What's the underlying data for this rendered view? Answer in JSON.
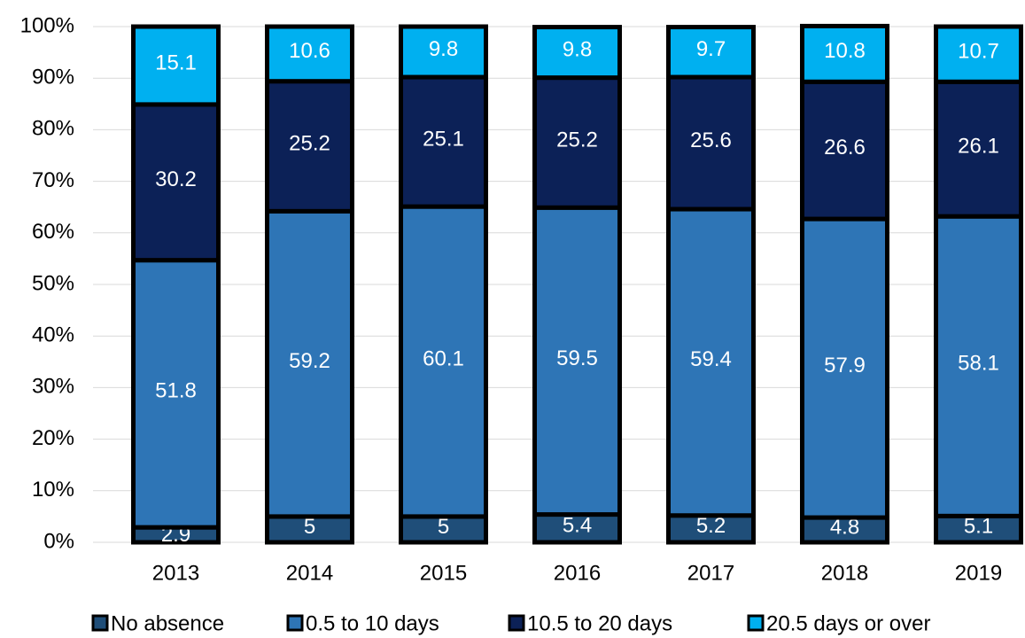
{
  "chart_data": {
    "type": "stacked-bar",
    "categories": [
      "2013",
      "2014",
      "2015",
      "2016",
      "2017",
      "2018",
      "2019"
    ],
    "series": [
      {
        "name": "No absence",
        "color": "#1f4e79",
        "values": [
          2.9,
          5,
          5,
          5.4,
          5.2,
          4.8,
          5.1
        ]
      },
      {
        "name": "0.5 to 10 days",
        "color": "#2e75b6",
        "values": [
          51.8,
          59.2,
          60.1,
          59.5,
          59.4,
          57.9,
          58.1
        ]
      },
      {
        "name": "10.5 to 20 days",
        "color": "#0c2157",
        "values": [
          30.2,
          25.2,
          25.1,
          25.2,
          25.6,
          26.6,
          26.1
        ]
      },
      {
        "name": "20.5 days or over",
        "color": "#00b0f0",
        "values": [
          15.1,
          10.6,
          9.8,
          9.8,
          9.7,
          10.8,
          10.7
        ]
      }
    ],
    "ylim": [
      0,
      100
    ],
    "yticks": [
      {
        "value": 0,
        "label": "0%"
      },
      {
        "value": 10,
        "label": "10%"
      },
      {
        "value": 20,
        "label": "20%"
      },
      {
        "value": 30,
        "label": "30%"
      },
      {
        "value": 40,
        "label": "40%"
      },
      {
        "value": 50,
        "label": "50%"
      },
      {
        "value": 60,
        "label": "60%"
      },
      {
        "value": 70,
        "label": "70%"
      },
      {
        "value": 80,
        "label": "80%"
      },
      {
        "value": 90,
        "label": "90%"
      },
      {
        "value": 100,
        "label": "100%"
      }
    ],
    "grid": true,
    "legend": "bottom"
  }
}
